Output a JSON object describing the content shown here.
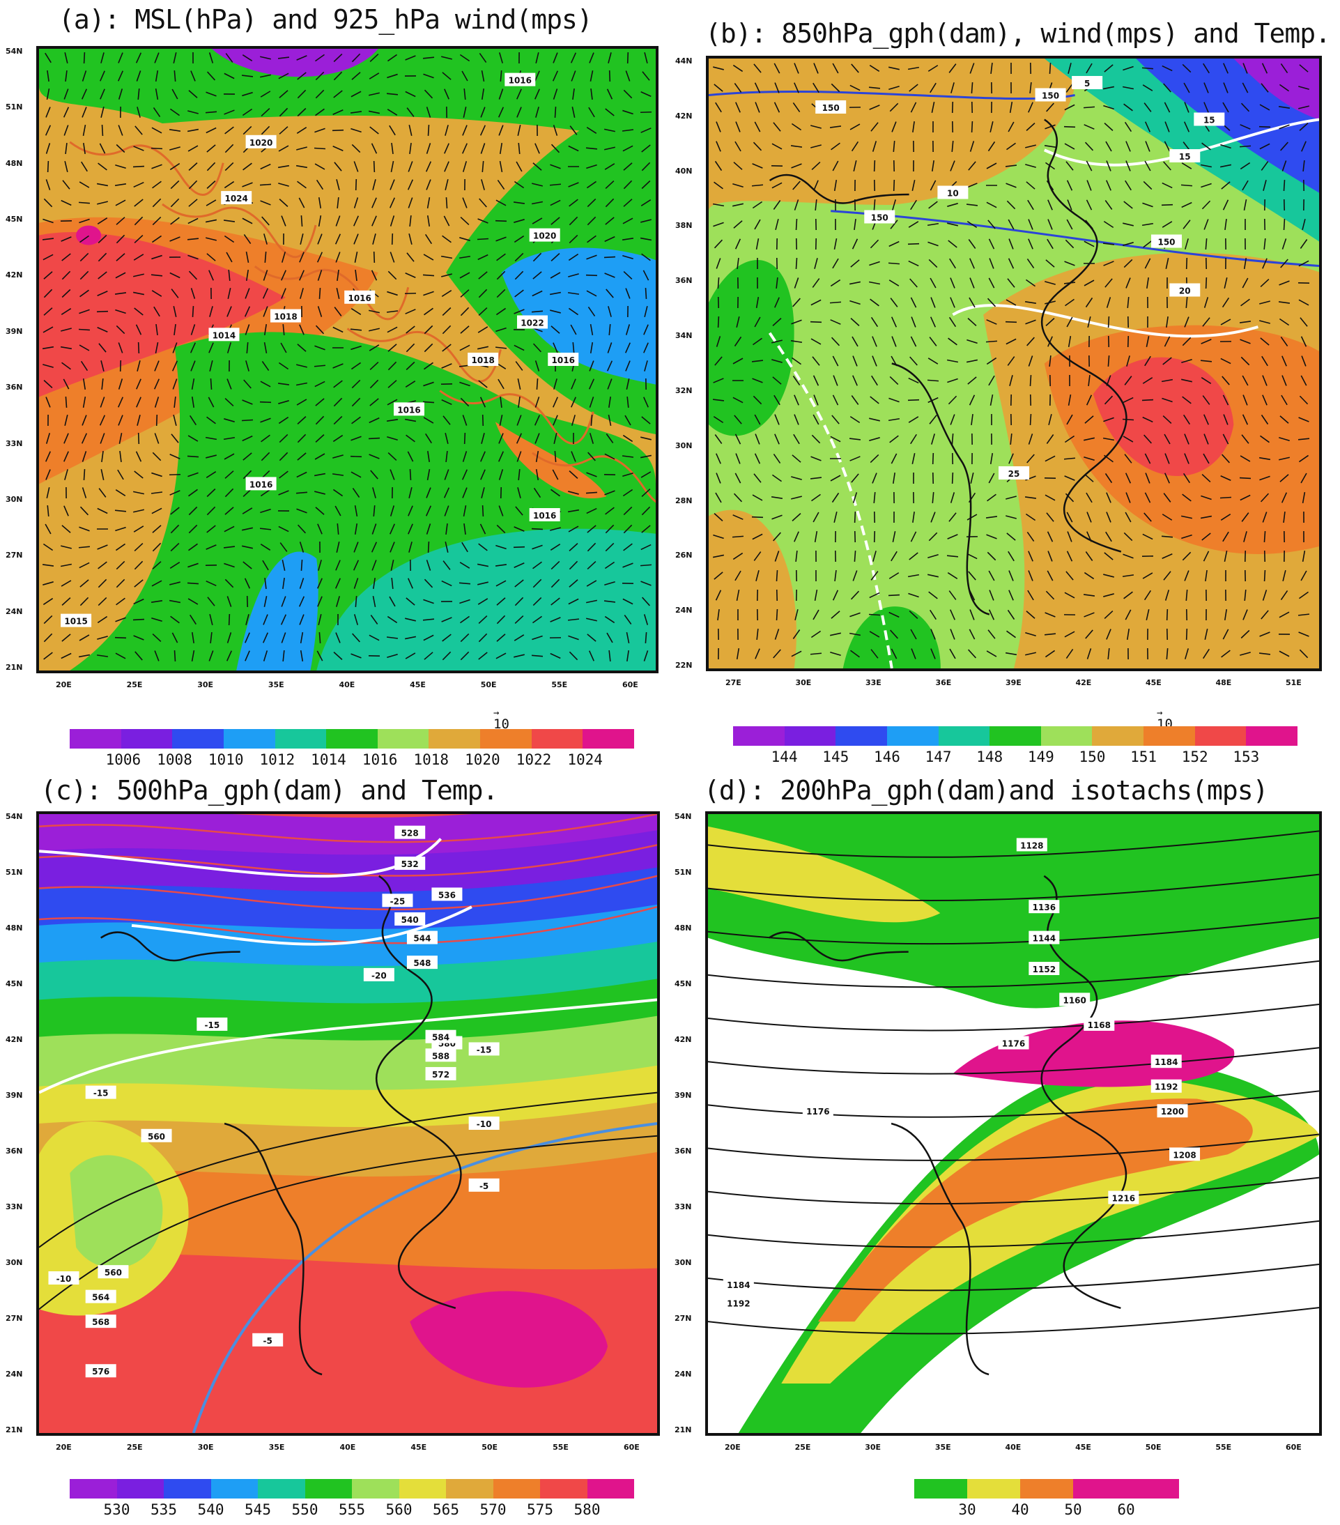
{
  "panels": [
    {
      "id": "a",
      "title": "(a): MSL(hPa) and 925_hPa wind(mps)",
      "colorbar": [
        "1006",
        "1008",
        "1010",
        "1012",
        "1014",
        "1016",
        "1018",
        "1020",
        "1022",
        "1024"
      ],
      "colors": [
        "#9b1fd8",
        "#7a1fe0",
        "#2f4bf0",
        "#1e9ef5",
        "#17c79b",
        "#21c321",
        "#9ee05a",
        "#e0a93a",
        "#ee7f2a",
        "#f04848",
        "#e0148c"
      ],
      "ref_vector": "10",
      "contour_labels": [
        "1016",
        "1020",
        "1024",
        "1018",
        "1016",
        "1020",
        "1022",
        "1018",
        "1016",
        "1016",
        "1016",
        "1014",
        "1016",
        "1015"
      ],
      "lat_labels": [
        "54N",
        "51N",
        "48N",
        "45N",
        "42N",
        "39N",
        "36N",
        "33N",
        "30N",
        "27N",
        "24N",
        "21N"
      ],
      "lon_labels": [
        "20E",
        "25E",
        "30E",
        "35E",
        "40E",
        "45E",
        "50E",
        "55E",
        "60E"
      ]
    },
    {
      "id": "b",
      "title": "(b): 850hPa_gph(dam), wind(mps) and Temp.",
      "colorbar": [
        "144",
        "145",
        "146",
        "147",
        "148",
        "149",
        "150",
        "151",
        "152",
        "153"
      ],
      "colors": [
        "#9b1fd8",
        "#7a1fe0",
        "#2f4bf0",
        "#1e9ef5",
        "#17c79b",
        "#21c321",
        "#9ee05a",
        "#e0a93a",
        "#ee7f2a",
        "#f04848",
        "#e0148c"
      ],
      "ref_vector": "10",
      "contour_labels": [
        "150",
        "150",
        "150",
        "150",
        "10",
        "15",
        "15",
        "20",
        "25",
        "5"
      ],
      "lat_labels": [
        "44N",
        "42N",
        "40N",
        "38N",
        "36N",
        "34N",
        "32N",
        "30N",
        "28N",
        "26N",
        "24N",
        "22N"
      ],
      "lon_labels": [
        "27E",
        "30E",
        "33E",
        "36E",
        "39E",
        "42E",
        "45E",
        "48E",
        "51E"
      ]
    },
    {
      "id": "c",
      "title": "(c): 500hPa_gph(dam) and Temp.",
      "colorbar": [
        "530",
        "535",
        "540",
        "545",
        "550",
        "555",
        "560",
        "565",
        "570",
        "575",
        "580"
      ],
      "colors": [
        "#9b1fd8",
        "#7a1fe0",
        "#2f4bf0",
        "#1e9ef5",
        "#17c79b",
        "#21c321",
        "#9ee05a",
        "#e4de3a",
        "#e0a93a",
        "#ee7f2a",
        "#f04848",
        "#e0148c"
      ],
      "contour_labels": [
        "528",
        "532",
        "536",
        "540",
        "544",
        "548",
        "-25",
        "-20",
        "-15",
        "-15",
        "-15",
        "-10",
        "-5",
        "-5",
        "-10",
        "560",
        "560",
        "564",
        "568",
        "572",
        "576",
        "580",
        "584",
        "588"
      ],
      "lat_labels": [
        "54N",
        "51N",
        "48N",
        "45N",
        "42N",
        "39N",
        "36N",
        "33N",
        "30N",
        "27N",
        "24N",
        "21N"
      ],
      "lon_labels": [
        "20E",
        "25E",
        "30E",
        "35E",
        "40E",
        "45E",
        "50E",
        "55E",
        "60E"
      ]
    },
    {
      "id": "d",
      "title": "(d): 200hPa_gph(dam)and isotachs(mps)",
      "colorbar": [
        "30",
        "40",
        "50",
        "60"
      ],
      "colors": [
        "#21c321",
        "#e4de3a",
        "#ee7f2a",
        "#e0148c",
        "#e0148c"
      ],
      "contour_labels": [
        "1128",
        "1136",
        "1144",
        "1152",
        "1160",
        "1168",
        "1176",
        "1184",
        "1192",
        "1200",
        "1208",
        "1216",
        "1176",
        "1184",
        "1192"
      ],
      "lat_labels": [
        "54N",
        "51N",
        "48N",
        "45N",
        "42N",
        "39N",
        "36N",
        "33N",
        "30N",
        "27N",
        "24N",
        "21N"
      ],
      "lon_labels": [
        "20E",
        "25E",
        "30E",
        "35E",
        "40E",
        "45E",
        "50E",
        "55E",
        "60E"
      ]
    }
  ]
}
